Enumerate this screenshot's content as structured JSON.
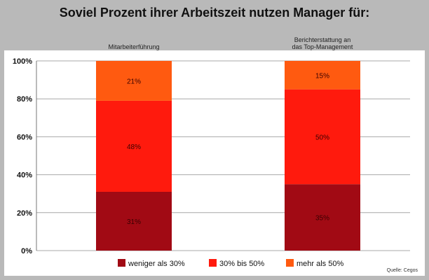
{
  "chart_data": {
    "type": "bar",
    "stacked": true,
    "title": "Soviel Prozent ihrer Arbeitszeit nutzen Manager für:",
    "categories": [
      "Mitarbeiterführung",
      "Berichterstattung an das Top-Management"
    ],
    "category_label_lines": [
      [
        "Mitarbeiterführung"
      ],
      [
        "Berichterstattung an",
        "das Top-Management"
      ]
    ],
    "series": [
      {
        "name": "weniger als 30%",
        "color": "#a10a14",
        "values": [
          31,
          35
        ],
        "labels": [
          "31%",
          "35%"
        ]
      },
      {
        "name": "30% bis 50%",
        "color": "#ff1a0d",
        "values": [
          48,
          50
        ],
        "labels": [
          "48%",
          "50%"
        ]
      },
      {
        "name": "mehr als 50%",
        "color": "#ff5a10",
        "values": [
          21,
          15
        ],
        "labels": [
          "21%",
          "15%"
        ]
      }
    ],
    "ylim": [
      0,
      100
    ],
    "yticks": [
      0,
      20,
      40,
      60,
      80,
      100
    ],
    "ytick_labels": [
      "0%",
      "20%",
      "40%",
      "60%",
      "80%",
      "100%"
    ],
    "grid": true,
    "legend_position": "bottom",
    "source": "Quelle: Cegos"
  }
}
